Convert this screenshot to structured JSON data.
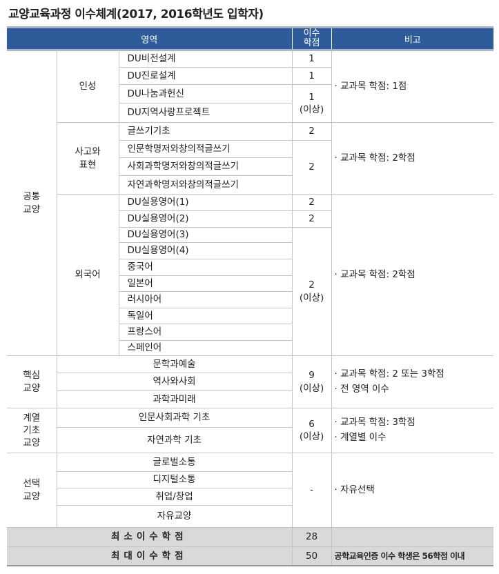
{
  "title": "교양교육과정 이수체계(2017, 2016학년도 입학자)",
  "header": {
    "area": "영역",
    "credits": "이수\n학점",
    "note": "비고"
  },
  "common": {
    "label": "공통\n교양",
    "inseong": {
      "label": "인성",
      "subjects": [
        "DU비전설계",
        "DU진로설계",
        "DU나눔과헌신",
        "DU지역사랑프로젝트"
      ],
      "credits": [
        "1",
        "1",
        "1\n(이상)"
      ],
      "note": "· 교과목 학점: 1점"
    },
    "writing": {
      "label": "사고와\n표현",
      "subjects": [
        "글쓰기기초",
        "인문학명저와창의적글쓰기",
        "사회과학명저와창의적글쓰기",
        "자연과학명저와창의적글쓰기"
      ],
      "credits": [
        "2",
        "2"
      ],
      "note": "· 교과목 학점: 2학점"
    },
    "foreign": {
      "label": "외국어",
      "subjects": [
        "DU실용영어(1)",
        "DU실용영어(2)",
        "DU실용영어(3)",
        "DU실용영어(4)",
        "중국어",
        "일본어",
        "러시아어",
        "독일어",
        "프랑스어",
        "스페인어"
      ],
      "credits": [
        "2",
        "2",
        "2\n(이상)"
      ],
      "note": "· 교과목 학점: 2학점"
    }
  },
  "core": {
    "label": "핵심\n교양",
    "subjects": [
      "문학과예술",
      "역사와사회",
      "과학과미래"
    ],
    "credits": "9\n(이상)",
    "note": "· 교과목 학점: 2 또는 3학점\n· 전 영역 이수"
  },
  "basic": {
    "label": "계열\n기초\n교양",
    "subjects": [
      "인문사회과학 기초",
      "자연과학 기초"
    ],
    "credits": "6\n(이상)",
    "note": "· 교과목 학점: 3학점\n· 계열별 이수"
  },
  "elective": {
    "label": "선택\n교양",
    "subjects": [
      "글로벌소통",
      "디지털소통",
      "취업/창업",
      "자유교양"
    ],
    "credits": "-",
    "note": "· 자유선택"
  },
  "summary": {
    "min_label": "최소이수학점",
    "min_value": "28",
    "max_label": "최대이수학점",
    "max_value": "50",
    "max_note": "공학교육인증 이수 학생은 56학점 이내"
  }
}
